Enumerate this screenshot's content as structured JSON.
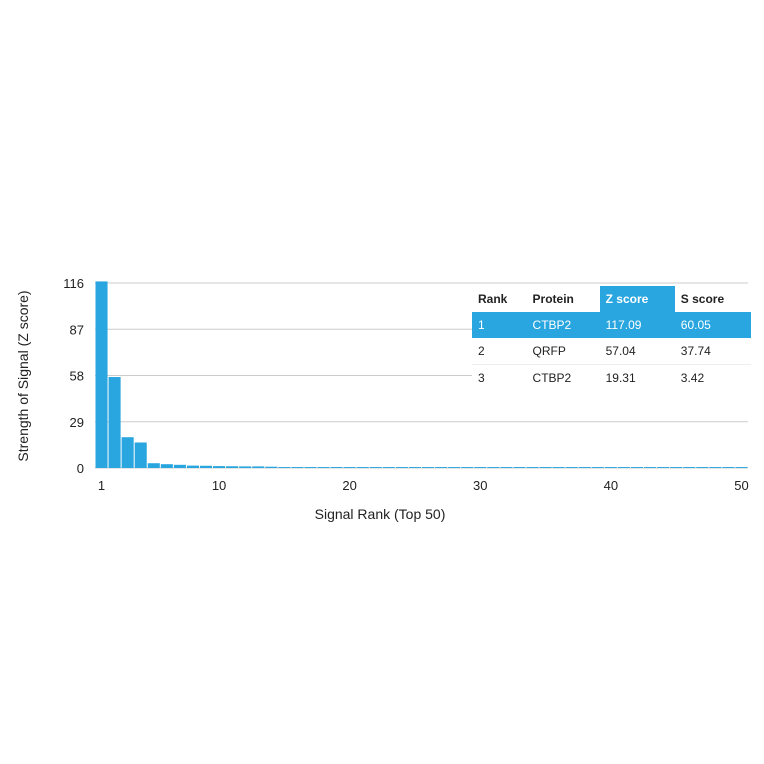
{
  "chart_data": {
    "type": "bar",
    "xlabel": "Signal Rank (Top 50)",
    "ylabel": "Strength of Signal (Z score)",
    "yticks": [
      0,
      29,
      58,
      87,
      116
    ],
    "xticks": [
      1,
      10,
      20,
      30,
      40,
      50
    ],
    "ylim": [
      0,
      116
    ],
    "xlim": [
      0.5,
      50.5
    ],
    "grid": true,
    "bar_color": "#29a6df",
    "values": [
      117.09,
      57.04,
      19.31,
      16,
      3,
      2.4,
      2,
      1.5,
      1.4,
      1.2,
      1.1,
      1,
      1,
      0.8,
      0.6,
      0.6,
      0.6,
      0.6,
      0.6,
      0.6,
      0.6,
      0.6,
      0.6,
      0.6,
      0.6,
      0.6,
      0.6,
      0.6,
      0.6,
      0.6,
      0.6,
      0.6,
      0.6,
      0.6,
      0.6,
      0.6,
      0.6,
      0.6,
      0.6,
      0.6,
      0.6,
      0.6,
      0.6,
      0.6,
      0.6,
      0.6,
      0.6,
      0.6,
      0.6,
      0.6
    ]
  },
  "table": {
    "headers": [
      "Rank",
      "Protein",
      "Z score",
      "S score"
    ],
    "rows": [
      [
        "1",
        "CTBP2",
        "117.09",
        "60.05"
      ],
      [
        "2",
        "QRFP",
        "57.04",
        "37.74"
      ],
      [
        "3",
        "CTBP2",
        "19.31",
        "3.42"
      ]
    ]
  }
}
